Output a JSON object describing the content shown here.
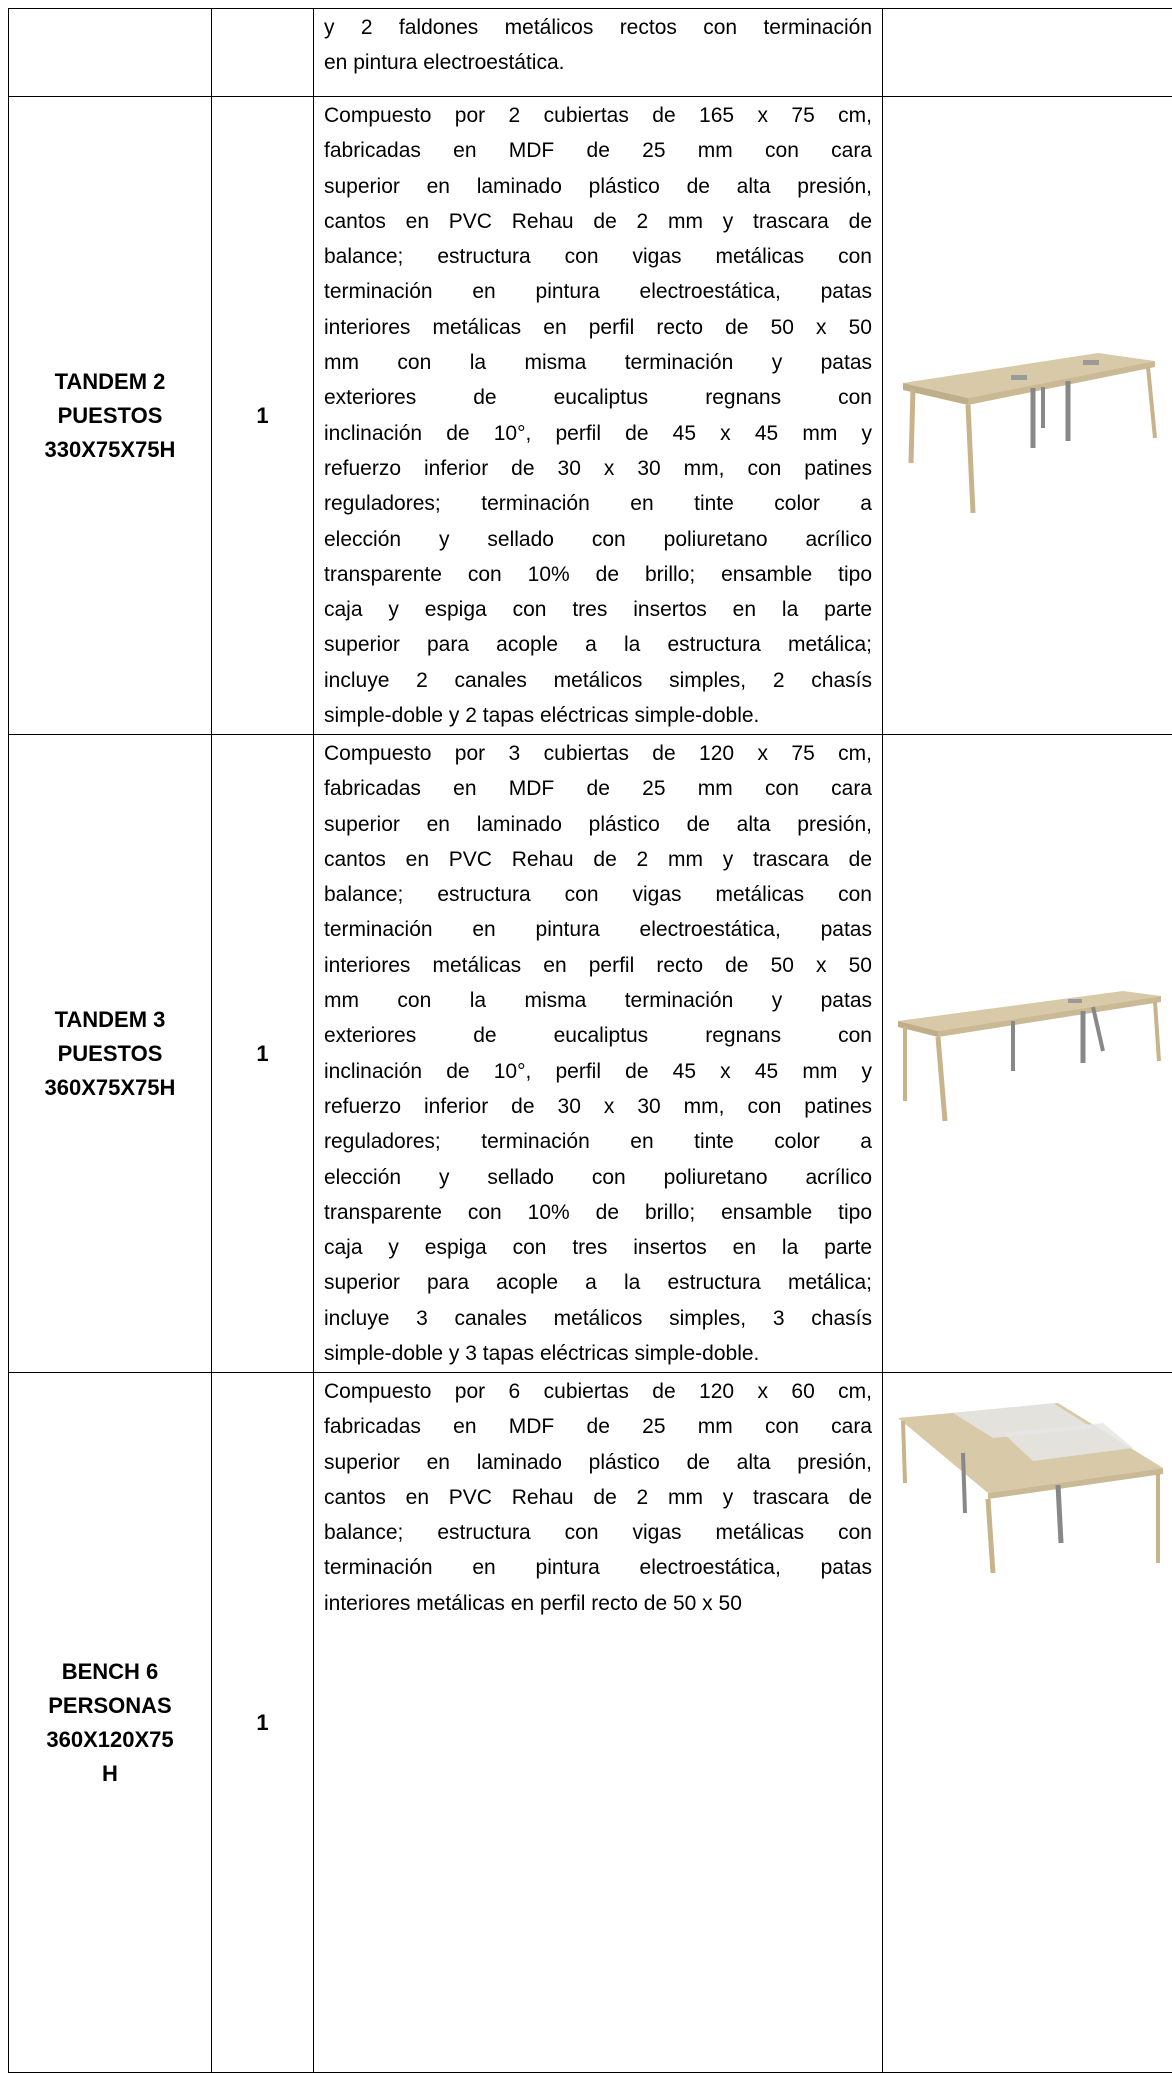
{
  "table": {
    "rows": [
      {
        "description": [
          "y 2 faldones metálicos rectos con terminación",
          "en pintura electroestática."
        ]
      },
      {
        "product": "TANDEM 2 PUESTOS 330X75X75H",
        "quantity": "1",
        "description": [
          "Compuesto por 2 cubiertas de 165 x 75 cm,",
          "fabricadas en MDF de 25 mm con cara",
          "superior en laminado plástico de alta presión,",
          "cantos en PVC Rehau de 2 mm y trascara de",
          "balance; estructura con vigas metálicas con",
          "terminación en pintura electroestática, patas",
          "interiores metálicas en perfil recto de 50 x 50",
          "mm con la misma terminación y patas",
          "exteriores de eucaliptus regnans con",
          "inclinación de 10°, perfil de 45 x 45 mm y",
          "refuerzo inferior de 30 x 30 mm, con patines",
          "reguladores; terminación en tinte color a",
          "elección y sellado con poliuretano acrílico",
          "transparente con 10% de brillo; ensamble tipo",
          "caja y espiga con tres insertos en la parte",
          "superior para acople a la estructura metálica;",
          "incluye 2 canales metálicos simples, 2 chasís",
          "simple-doble y 2 tapas eléctricas simple-doble."
        ]
      },
      {
        "product": "TANDEM 3 PUESTOS 360X75X75H",
        "quantity": "1",
        "description": [
          "Compuesto por 3 cubiertas de 120 x 75 cm,",
          "fabricadas en MDF de 25 mm con cara",
          "superior en laminado plástico de alta presión,",
          "cantos en PVC Rehau de 2 mm y trascara de",
          "balance; estructura con vigas metálicas con",
          "terminación en pintura electroestática, patas",
          "interiores metálicas en perfil recto de 50 x 50",
          "mm con la misma terminación y patas",
          "exteriores de eucaliptus regnans con",
          "inclinación de 10°, perfil de 45 x 45 mm y",
          "refuerzo inferior de 30 x 30 mm, con patines",
          "reguladores; terminación en tinte color a",
          "elección y sellado con poliuretano acrílico",
          "transparente con 10% de brillo; ensamble tipo",
          "caja y espiga con tres insertos en la parte",
          "superior para acople a la estructura metálica;",
          "incluye 3 canales metálicos simples, 3 chasís",
          "simple-doble y 3 tapas eléctricas simple-doble."
        ]
      },
      {
        "product": "BENCH 6 PERSONAS 360X120X75 H",
        "quantity": "1",
        "description": [
          "Compuesto por 6 cubiertas de 120 x 60 cm,",
          "fabricadas en MDF de 25 mm con cara",
          "superior en laminado plástico de alta presión,",
          "cantos en PVC Rehau de 2 mm y trascara de",
          "balance; estructura con vigas metálicas con",
          "terminación en pintura electroestática, patas",
          "interiores metálicas en perfil recto de 50 x 50"
        ]
      }
    ]
  }
}
